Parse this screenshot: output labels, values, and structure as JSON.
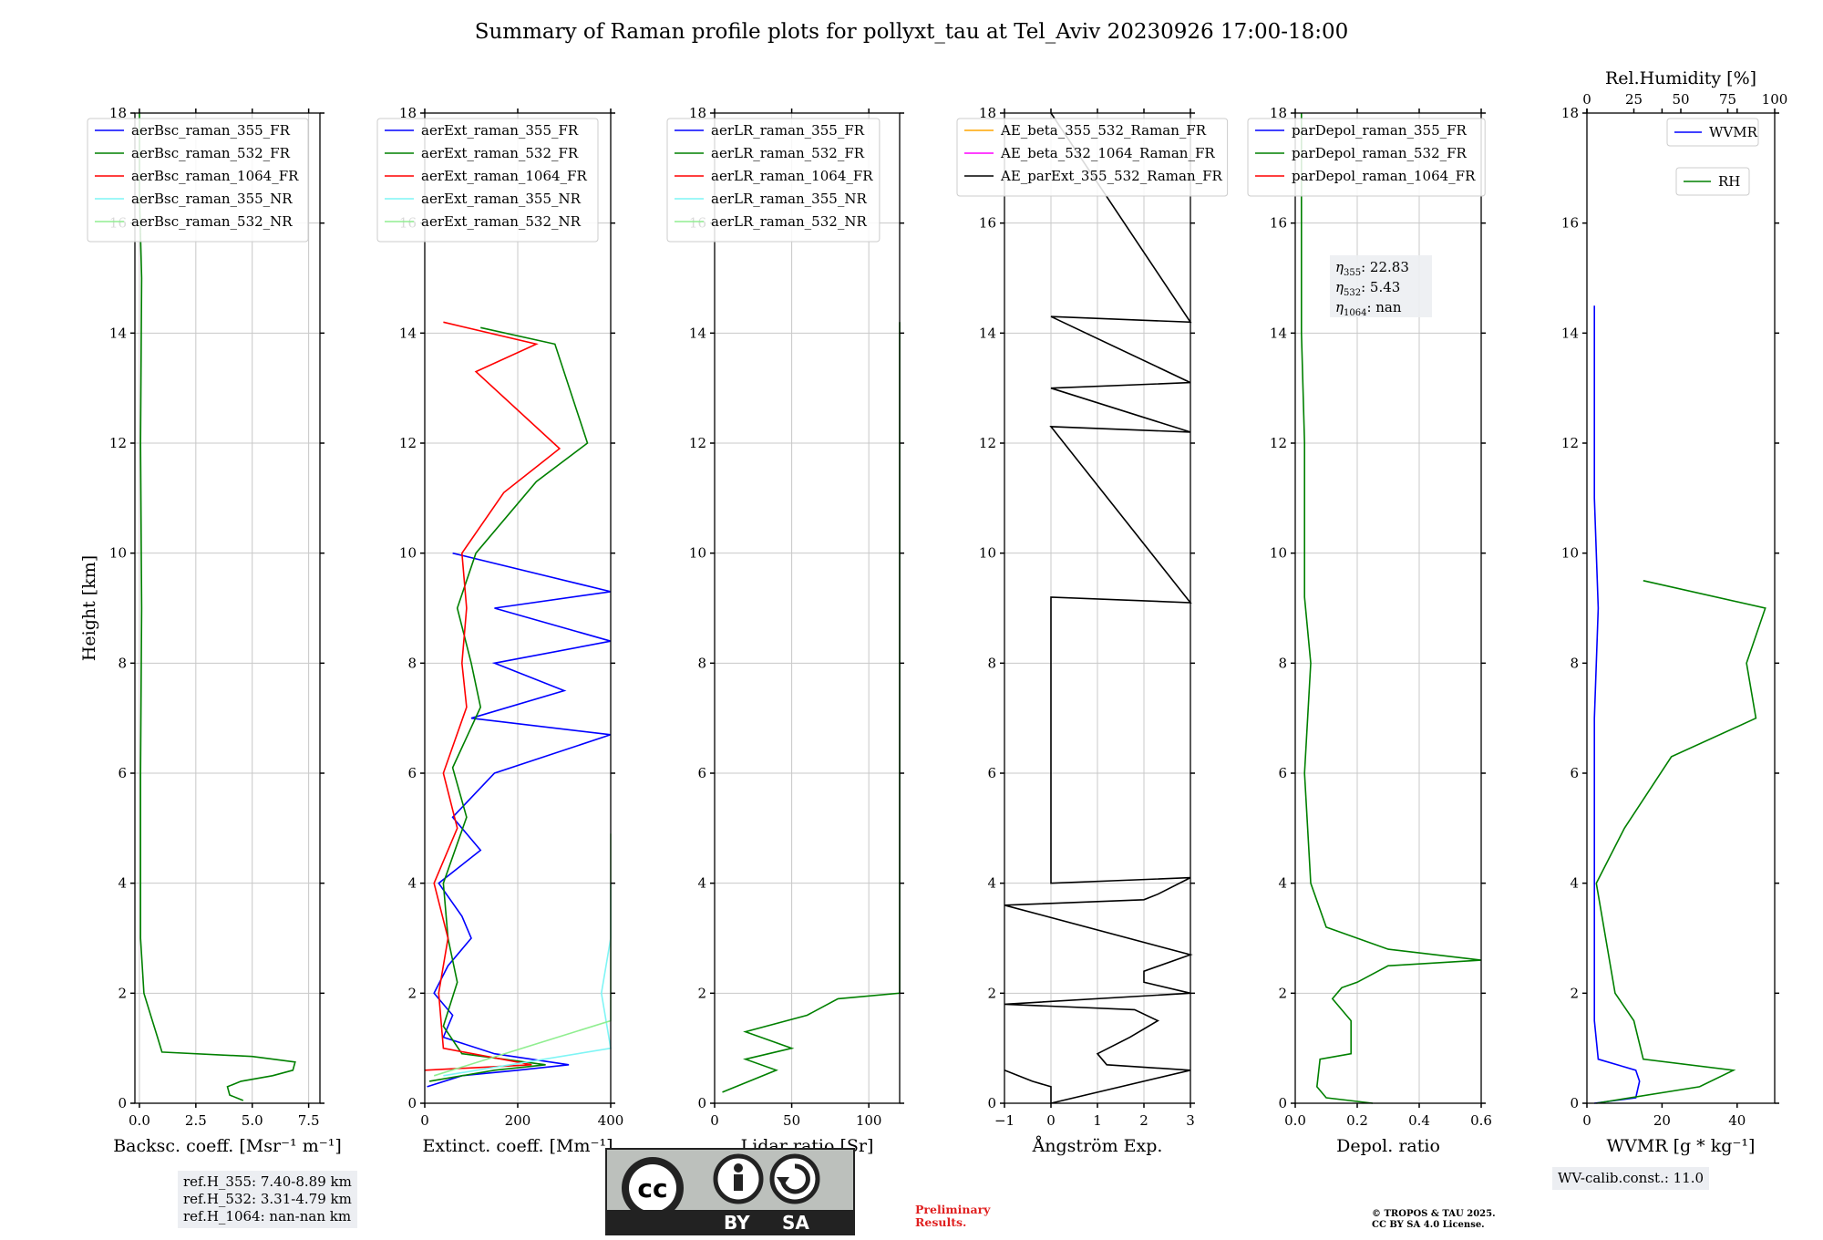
{
  "title": "Summary of Raman profile plots for pollyxt_tau at Tel_Aviv 20230926 17:00-18:00",
  "colors": {
    "blue": "#0000ff",
    "green": "#008000",
    "red": "#ff0000",
    "cyan": "#7ff5f5",
    "lightgreen": "#90ee90",
    "orange": "#ffa500",
    "magenta": "#ff00ff",
    "black": "#000000"
  },
  "chart_data": [
    {
      "type": "line",
      "name": "backscatter",
      "xlabel": "Backsc. coeff. [Msr⁻¹ m⁻¹]",
      "ylabel": "Height [km]",
      "xlim": [
        -0.2,
        8
      ],
      "ylim": [
        0,
        18
      ],
      "xticks": [
        0,
        2.5,
        5,
        7.5
      ],
      "xticklabels": [
        "0.0",
        "2.5",
        "5.0",
        "7.5"
      ],
      "yticks": [
        0,
        2,
        4,
        6,
        8,
        10,
        12,
        14,
        16,
        18
      ],
      "grid": true,
      "legend": "top-left",
      "series": [
        {
          "name": "aerBsc_raman_355_FR",
          "color": "#0000ff",
          "points": []
        },
        {
          "name": "aerBsc_raman_532_FR",
          "color": "#008000",
          "points": [
            [
              4.6,
              0.05
            ],
            [
              4.0,
              0.15
            ],
            [
              3.9,
              0.3
            ],
            [
              4.5,
              0.4
            ],
            [
              5.9,
              0.5
            ],
            [
              6.8,
              0.6
            ],
            [
              6.9,
              0.75
            ],
            [
              5.0,
              0.85
            ],
            [
              1.0,
              0.93
            ],
            [
              0.8,
              1.2
            ],
            [
              0.5,
              1.6
            ],
            [
              0.2,
              2.0
            ],
            [
              0.05,
              3
            ],
            [
              0.05,
              6
            ],
            [
              0.1,
              9
            ],
            [
              0.05,
              12
            ],
            [
              0.1,
              15
            ],
            [
              0,
              16.5
            ],
            [
              0,
              18
            ]
          ]
        },
        {
          "name": "aerBsc_raman_1064_FR",
          "color": "#ff0000",
          "points": []
        },
        {
          "name": "aerBsc_raman_355_NR",
          "color": "#7ff5f5",
          "points": []
        },
        {
          "name": "aerBsc_raman_532_NR",
          "color": "#90ee90",
          "points": []
        }
      ]
    },
    {
      "type": "line",
      "name": "extinction",
      "xlabel": "Extinct. coeff. [Mm⁻¹]",
      "xlim": [
        0,
        400
      ],
      "ylim": [
        0,
        18
      ],
      "xticks": [
        0,
        200,
        400
      ],
      "xticklabels": [
        "0",
        "200",
        "400"
      ],
      "yticks": [
        0,
        2,
        4,
        6,
        8,
        10,
        12,
        14,
        16,
        18
      ],
      "grid": true,
      "legend": "top-left",
      "series": [
        {
          "name": "aerExt_raman_355_FR",
          "color": "#0000ff",
          "points": [
            [
              5,
              0.3
            ],
            [
              80,
              0.5
            ],
            [
              200,
              0.6
            ],
            [
              310,
              0.7
            ],
            [
              150,
              0.9
            ],
            [
              40,
              1.2
            ],
            [
              60,
              1.6
            ],
            [
              20,
              2.0
            ],
            [
              50,
              2.5
            ],
            [
              100,
              3.0
            ],
            [
              80,
              3.4
            ],
            [
              30,
              4.0
            ],
            [
              120,
              4.6
            ],
            [
              60,
              5.2
            ],
            [
              150,
              6.0
            ],
            [
              400,
              6.7
            ],
            [
              100,
              7.0
            ],
            [
              300,
              7.5
            ],
            [
              150,
              8.0
            ],
            [
              400,
              8.4
            ],
            [
              150,
              9.0
            ],
            [
              400,
              9.3
            ],
            [
              60,
              10.0
            ]
          ]
        },
        {
          "name": "aerExt_raman_532_FR",
          "color": "#008000",
          "points": [
            [
              10,
              0.4
            ],
            [
              150,
              0.6
            ],
            [
              260,
              0.7
            ],
            [
              80,
              0.9
            ],
            [
              40,
              1.4
            ],
            [
              70,
              2.2
            ],
            [
              50,
              3.0
            ],
            [
              40,
              4.0
            ],
            [
              90,
              5.2
            ],
            [
              60,
              6.1
            ],
            [
              120,
              7.2
            ],
            [
              100,
              8.0
            ],
            [
              70,
              9.0
            ],
            [
              110,
              10.0
            ],
            [
              240,
              11.3
            ],
            [
              350,
              12.0
            ],
            [
              280,
              13.8
            ],
            [
              120,
              14.1
            ]
          ]
        },
        {
          "name": "aerExt_raman_1064_FR",
          "color": "#ff0000",
          "points": [
            [
              0,
              0.6
            ],
            [
              230,
              0.7
            ],
            [
              40,
              1.0
            ],
            [
              30,
              2.0
            ],
            [
              50,
              3.0
            ],
            [
              20,
              4.0
            ],
            [
              70,
              5.0
            ],
            [
              40,
              6.0
            ],
            [
              90,
              7.2
            ],
            [
              80,
              8.0
            ],
            [
              90,
              9.0
            ],
            [
              80,
              10.0
            ],
            [
              170,
              11.1
            ],
            [
              290,
              11.9
            ],
            [
              110,
              13.3
            ],
            [
              240,
              13.8
            ],
            [
              40,
              14.2
            ]
          ]
        },
        {
          "name": "aerExt_raman_355_NR",
          "color": "#7ff5f5",
          "points": [
            [
              40,
              0.5
            ],
            [
              400,
              1.0
            ],
            [
              380,
              2.0
            ],
            [
              400,
              3.0
            ],
            [
              400,
              4.0
            ]
          ]
        },
        {
          "name": "aerExt_raman_532_NR",
          "color": "#90ee90",
          "points": [
            [
              20,
              0.5
            ],
            [
              400,
              1.5
            ],
            [
              400,
              2.5
            ],
            [
              400,
              3.5
            ],
            [
              400,
              4.1
            ],
            [
              400,
              4.9
            ]
          ]
        }
      ]
    },
    {
      "type": "line",
      "name": "lidar_ratio",
      "xlabel": "Lidar ratio [Sr]",
      "xlim": [
        0,
        120
      ],
      "ylim": [
        0,
        18
      ],
      "xticks": [
        0,
        50,
        100
      ],
      "xticklabels": [
        "0",
        "50",
        "100"
      ],
      "yticks": [
        0,
        2,
        4,
        6,
        8,
        10,
        12,
        14,
        16,
        18
      ],
      "grid": true,
      "legend": "top-left",
      "series": [
        {
          "name": "aerLR_raman_355_FR",
          "color": "#0000ff",
          "points": []
        },
        {
          "name": "aerLR_raman_532_FR",
          "color": "#008000",
          "points": [
            [
              5,
              0.2
            ],
            [
              40,
              0.6
            ],
            [
              20,
              0.8
            ],
            [
              50,
              1.0
            ],
            [
              20,
              1.3
            ],
            [
              60,
              1.6
            ],
            [
              80,
              1.9
            ],
            [
              120,
              2.0
            ],
            [
              120,
              14.2
            ]
          ]
        },
        {
          "name": "aerLR_raman_1064_FR",
          "color": "#ff0000",
          "points": []
        },
        {
          "name": "aerLR_raman_355_NR",
          "color": "#7ff5f5",
          "points": []
        },
        {
          "name": "aerLR_raman_532_NR",
          "color": "#90ee90",
          "points": []
        }
      ]
    },
    {
      "type": "line",
      "name": "angstrom",
      "xlabel": "Ångström Exp.",
      "xlim": [
        -1,
        3
      ],
      "ylim": [
        0,
        18
      ],
      "xticks": [
        -1,
        0,
        1,
        2,
        3
      ],
      "xticklabels": [
        "−1",
        "0",
        "1",
        "2",
        "3"
      ],
      "yticks": [
        0,
        2,
        4,
        6,
        8,
        10,
        12,
        14,
        16,
        18
      ],
      "grid": true,
      "legend": "top-left",
      "series": [
        {
          "name": "AE_beta_355_532_Raman_FR",
          "color": "#ffa500",
          "points": []
        },
        {
          "name": "AE_beta_532_1064_Raman_FR",
          "color": "#ff00ff",
          "points": []
        },
        {
          "name": "AE_parExt_355_532_Raman_FR",
          "color": "#000000",
          "points": [
            [
              -1,
              0.6
            ],
            [
              -0.4,
              0.4
            ],
            [
              0,
              0.3
            ],
            [
              0,
              0
            ],
            [
              3,
              0.6
            ],
            [
              1.2,
              0.7
            ],
            [
              1.0,
              0.9
            ],
            [
              1.7,
              1.2
            ],
            [
              2.3,
              1.5
            ],
            [
              1.8,
              1.7
            ],
            [
              -1,
              1.8
            ],
            [
              3,
              2.0
            ],
            [
              2.0,
              2.2
            ],
            [
              2.0,
              2.4
            ],
            [
              3,
              2.7
            ],
            [
              -1,
              3.6
            ],
            [
              2.0,
              3.7
            ],
            [
              2.3,
              3.8
            ],
            [
              3,
              4.1
            ],
            [
              0,
              4.0
            ],
            [
              0,
              9.2
            ],
            [
              3,
              9.1
            ],
            [
              0,
              12.3
            ],
            [
              3,
              12.2
            ],
            [
              0,
              13.0
            ],
            [
              3,
              13.1
            ],
            [
              0,
              14.3
            ],
            [
              3,
              14.2
            ],
            [
              0,
              18
            ]
          ]
        }
      ]
    },
    {
      "type": "line",
      "name": "depolarization",
      "xlabel": "Depol. ratio",
      "xlim": [
        0,
        0.6
      ],
      "ylim": [
        0,
        18
      ],
      "xticks": [
        0,
        0.2,
        0.4,
        0.6
      ],
      "xticklabels": [
        "0.0",
        "0.2",
        "0.4",
        "0.6"
      ],
      "yticks": [
        0,
        2,
        4,
        6,
        8,
        10,
        12,
        14,
        16,
        18
      ],
      "grid": true,
      "legend": "top-left",
      "annotation": [
        {
          "sym": "η",
          "sub": "355",
          "value": ": 22.83"
        },
        {
          "sym": "η",
          "sub": "532",
          "value": ": 5.43"
        },
        {
          "sym": "η",
          "sub": "1064",
          "value": ": nan"
        }
      ],
      "series": [
        {
          "name": "parDepol_raman_355_FR",
          "color": "#0000ff",
          "points": []
        },
        {
          "name": "parDepol_raman_532_FR",
          "color": "#008000",
          "points": [
            [
              0.25,
              0
            ],
            [
              0.1,
              0.1
            ],
            [
              0.07,
              0.3
            ],
            [
              0.08,
              0.8
            ],
            [
              0.18,
              0.9
            ],
            [
              0.18,
              1.5
            ],
            [
              0.12,
              1.9
            ],
            [
              0.15,
              2.1
            ],
            [
              0.2,
              2.2
            ],
            [
              0.3,
              2.5
            ],
            [
              0.6,
              2.6
            ],
            [
              0.3,
              2.8
            ],
            [
              0.1,
              3.2
            ],
            [
              0.05,
              4.0
            ],
            [
              0.03,
              6.0
            ],
            [
              0.05,
              8.0
            ],
            [
              0.03,
              9.2
            ],
            [
              0.03,
              12.0
            ],
            [
              0.02,
              14.0
            ],
            [
              0.02,
              18
            ]
          ]
        },
        {
          "name": "parDepol_raman_1064_FR",
          "color": "#ff0000",
          "points": []
        }
      ]
    },
    {
      "type": "line",
      "name": "water_vapor",
      "xlabel": "WVMR [g * kg⁻¹]",
      "x2label": "Rel.Humidity [%]",
      "xlim": [
        0,
        50
      ],
      "x2lim": [
        0,
        100
      ],
      "ylim": [
        0,
        18
      ],
      "xticks": [
        0,
        20,
        40
      ],
      "xticklabels": [
        "0",
        "20",
        "40"
      ],
      "x2ticks": [
        0,
        25,
        50,
        75,
        100
      ],
      "x2ticklabels": [
        "0",
        "25",
        "50",
        "75",
        "100"
      ],
      "yticks": [
        0,
        2,
        4,
        6,
        8,
        10,
        12,
        14,
        16,
        18
      ],
      "grid": false,
      "legend": "top-right",
      "series": [
        {
          "name": "WVMR",
          "color": "#0000ff",
          "axis": "x",
          "points": [
            [
              2,
              0
            ],
            [
              13,
              0.1
            ],
            [
              14,
              0.4
            ],
            [
              13,
              0.6
            ],
            [
              3,
              0.8
            ],
            [
              2,
              1.5
            ],
            [
              2,
              3.0
            ],
            [
              2,
              5.0
            ],
            [
              2,
              7.0
            ],
            [
              3,
              9.0
            ],
            [
              2,
              11.0
            ],
            [
              2,
              14.5
            ]
          ]
        },
        {
          "name": "RH",
          "color": "#008000",
          "axis": "x2",
          "points": [
            [
              5,
              0
            ],
            [
              60,
              0.3
            ],
            [
              78,
              0.6
            ],
            [
              30,
              0.8
            ],
            [
              25,
              1.5
            ],
            [
              15,
              2.0
            ],
            [
              10,
              3.0
            ],
            [
              5,
              4.0
            ],
            [
              20,
              5.0
            ],
            [
              45,
              6.3
            ],
            [
              90,
              7.0
            ],
            [
              85,
              8.0
            ],
            [
              95,
              9.0
            ],
            [
              30,
              9.5
            ]
          ]
        }
      ]
    }
  ],
  "footer": {
    "ref_lines": [
      "ref.H_355: 7.40-8.89 km",
      "ref.H_532: 3.31-4.79 km",
      "ref.H_1064: nan-nan km"
    ],
    "license_badge": {
      "cc": "cc",
      "by": "BY",
      "sa": "SA"
    },
    "preliminary": [
      "Preliminary",
      "Results."
    ],
    "copyright": [
      "© TROPOS & TAU 2025.",
      "CC BY SA 4.0 License."
    ],
    "wv_calib": "WV-calib.const.: 11.0"
  }
}
